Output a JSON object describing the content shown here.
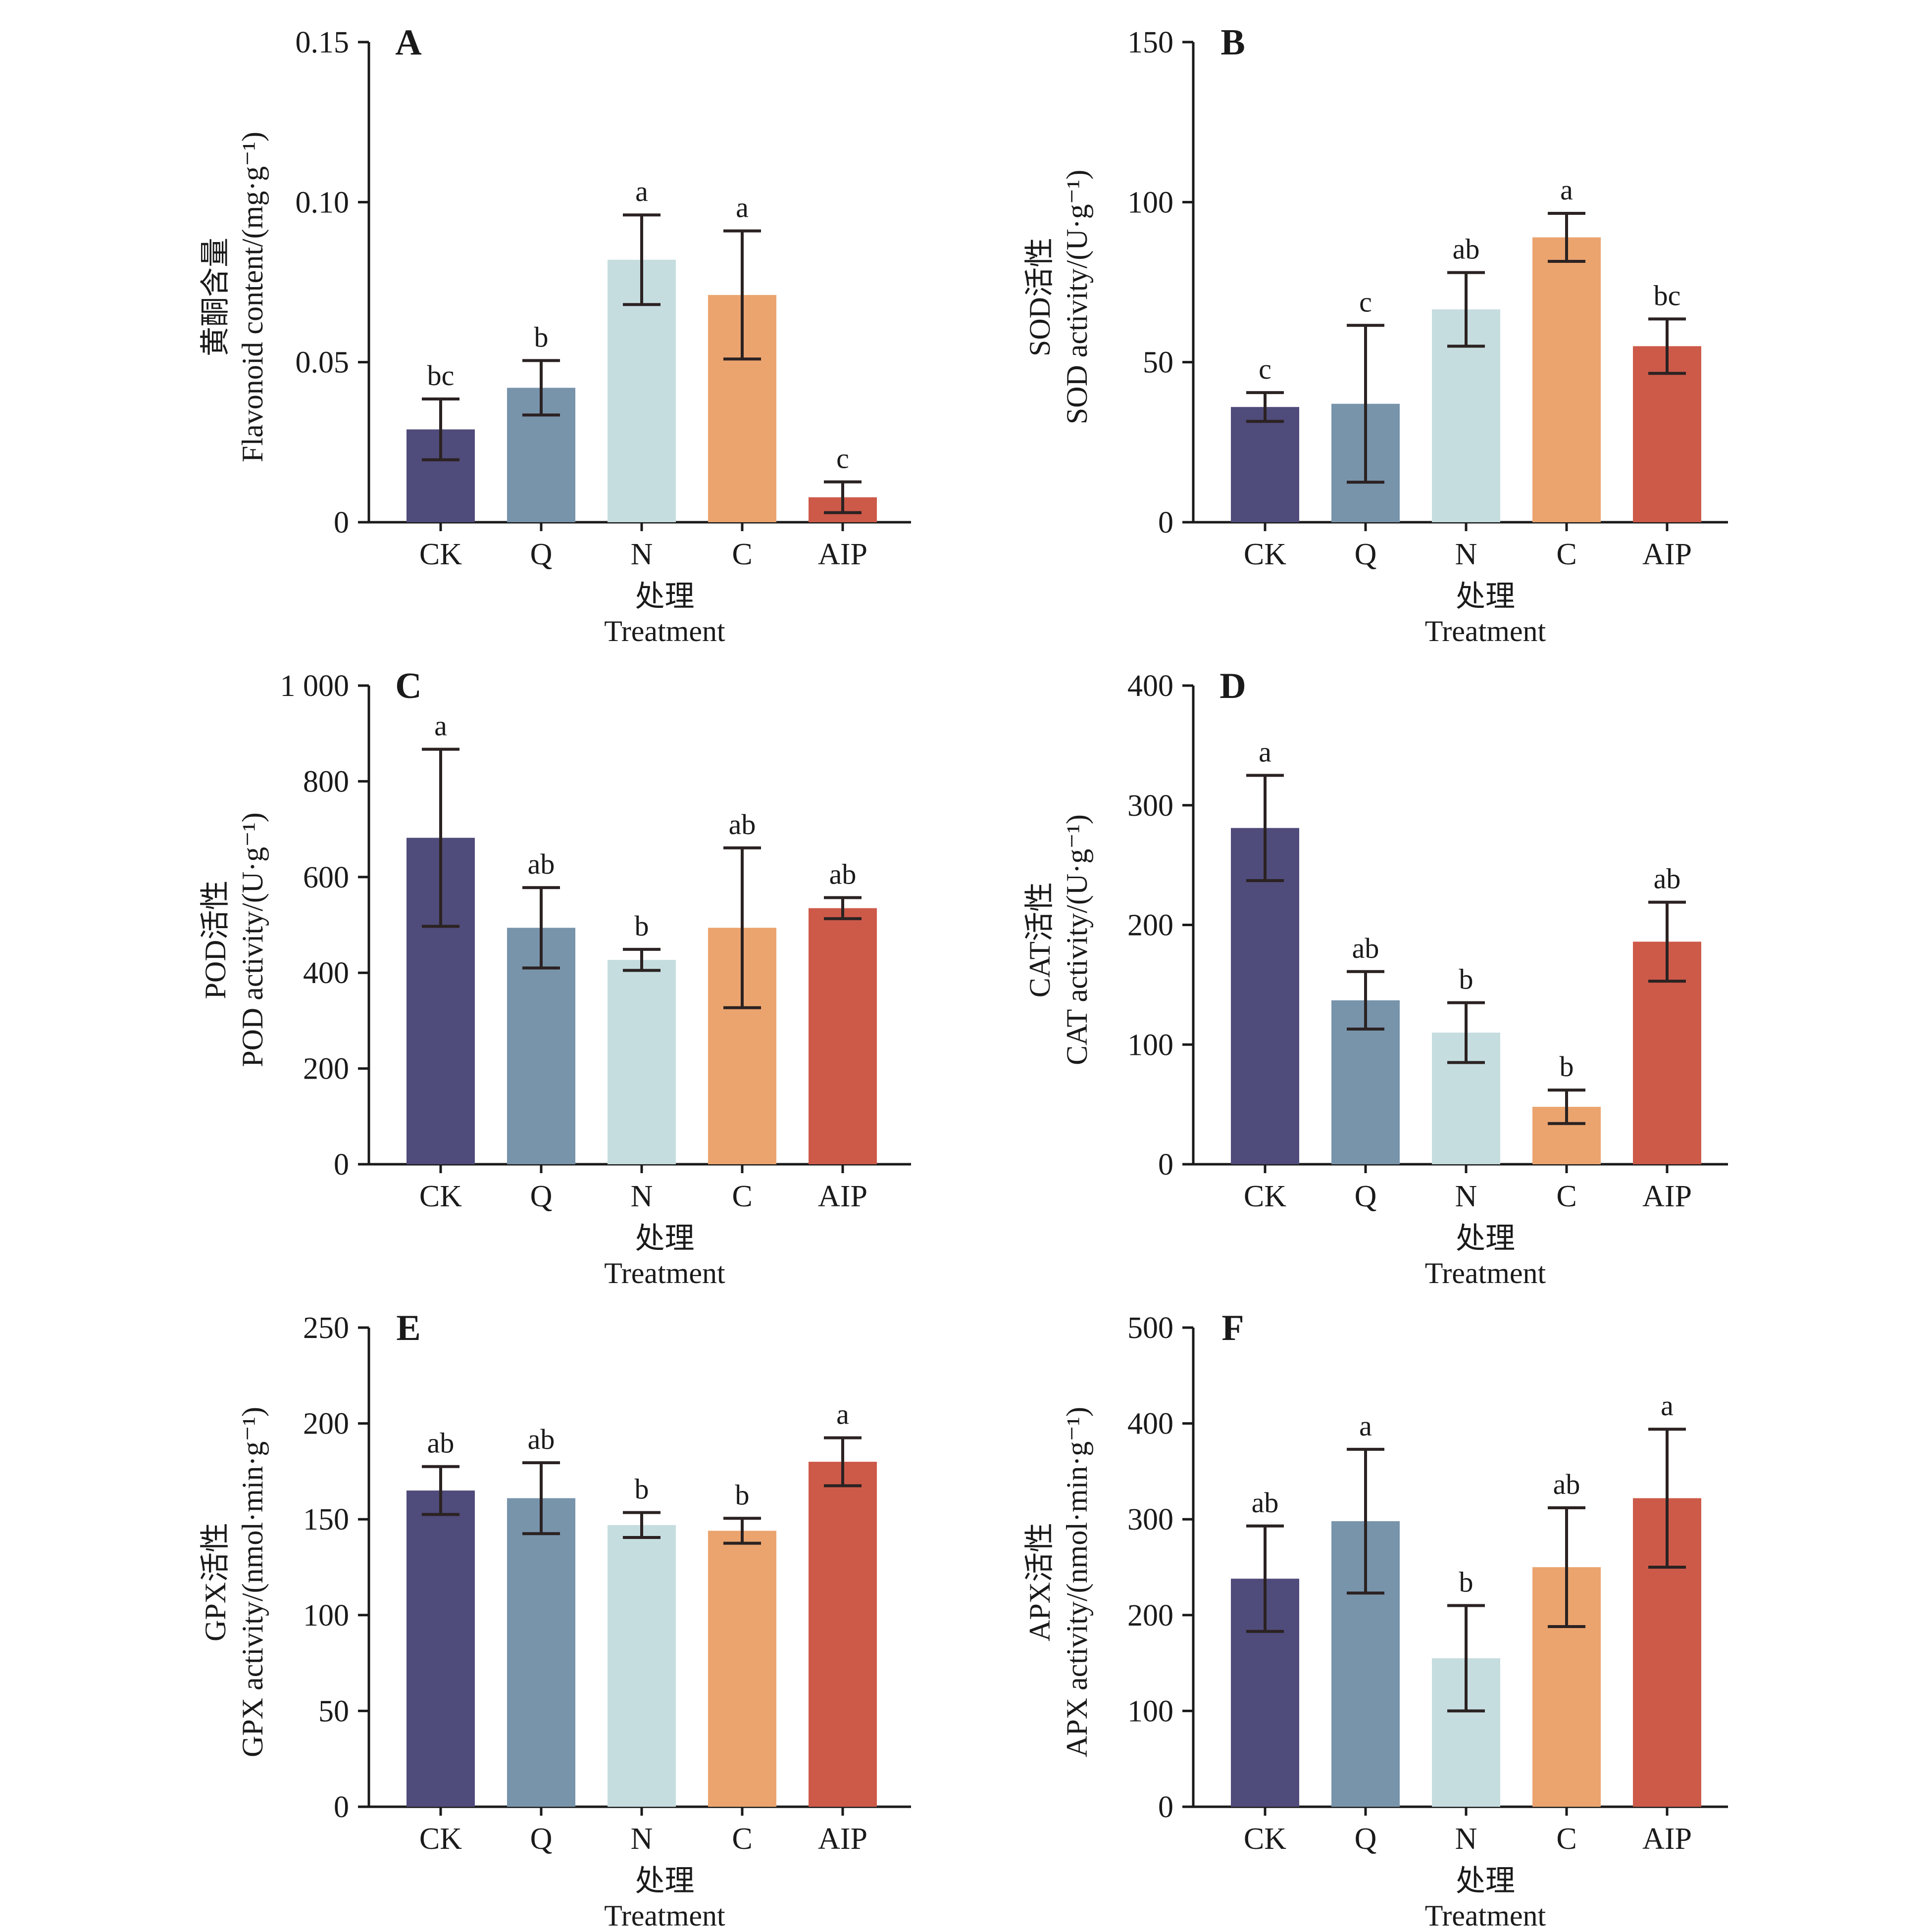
{
  "palette": {
    "CK": "#4f4b7a",
    "Q": "#7894ab",
    "N": "#c6dde0",
    "C": "#eba46e",
    "AIP": "#cd5a49"
  },
  "chart_data": [
    {
      "panel": "A",
      "type": "bar",
      "categories": [
        "CK",
        "Q",
        "N",
        "C",
        "AIP"
      ],
      "values": [
        0.029,
        0.042,
        0.082,
        0.071,
        0.0078
      ],
      "errors": [
        0.0095,
        0.0085,
        0.014,
        0.02,
        0.0048
      ],
      "significance": [
        "bc",
        "b",
        "a",
        "a",
        "c"
      ],
      "ylim": [
        0,
        0.15
      ],
      "yticks": [
        0,
        0.05,
        0.1,
        0.15
      ],
      "ytick_labels": [
        "0",
        "0.05",
        "0.10",
        "0.15"
      ],
      "ylabel_cn": "黄酮含量",
      "ylabel_en": "Flavonoid content/(mg·g⁻¹)",
      "xlabel_cn": "处理",
      "xlabel_en": "Treatment"
    },
    {
      "panel": "B",
      "type": "bar",
      "categories": [
        "CK",
        "Q",
        "N",
        "C",
        "AIP"
      ],
      "values": [
        36,
        37,
        66.5,
        89,
        55
      ],
      "errors": [
        4.5,
        24.5,
        11.5,
        7.5,
        8.5
      ],
      "significance": [
        "c",
        "c",
        "ab",
        "a",
        "bc"
      ],
      "ylim": [
        0,
        150
      ],
      "yticks": [
        0,
        50,
        100,
        150
      ],
      "ytick_labels": [
        "0",
        "50",
        "100",
        "150"
      ],
      "ylabel_cn": "SOD活性",
      "ylabel_en": "SOD activity/(U·g⁻¹)",
      "xlabel_cn": "处理",
      "xlabel_en": "Treatment"
    },
    {
      "panel": "C",
      "type": "bar",
      "categories": [
        "CK",
        "Q",
        "N",
        "C",
        "AIP"
      ],
      "values": [
        682,
        494,
        427,
        494,
        535
      ],
      "errors": [
        185,
        84,
        22,
        167,
        22
      ],
      "significance": [
        "a",
        "ab",
        "b",
        "ab",
        "ab"
      ],
      "ylim": [
        0,
        1000
      ],
      "yticks": [
        0,
        200,
        400,
        600,
        800,
        1000
      ],
      "ytick_labels": [
        "0",
        "200",
        "400",
        "600",
        "800",
        "1 000"
      ],
      "ylabel_cn": "POD活性",
      "ylabel_en": "POD activity/(U·g⁻¹)",
      "xlabel_cn": "处理",
      "xlabel_en": "Treatment"
    },
    {
      "panel": "D",
      "type": "bar",
      "categories": [
        "CK",
        "Q",
        "N",
        "C",
        "AIP"
      ],
      "values": [
        281,
        137,
        110,
        48,
        186
      ],
      "errors": [
        44,
        24,
        25,
        14,
        33
      ],
      "significance": [
        "a",
        "ab",
        "b",
        "b",
        "ab"
      ],
      "ylim": [
        0,
        400
      ],
      "yticks": [
        0,
        100,
        200,
        300,
        400
      ],
      "ytick_labels": [
        "0",
        "100",
        "200",
        "300",
        "400"
      ],
      "ylabel_cn": "CAT活性",
      "ylabel_en": "CAT activity/(U·g⁻¹)",
      "xlabel_cn": "处理",
      "xlabel_en": "Treatment"
    },
    {
      "panel": "E",
      "type": "bar",
      "categories": [
        "CK",
        "Q",
        "N",
        "C",
        "AIP"
      ],
      "values": [
        165,
        161,
        147,
        144,
        180
      ],
      "errors": [
        12.5,
        18.5,
        6.5,
        6.5,
        12.5
      ],
      "significance": [
        "ab",
        "ab",
        "b",
        "b",
        "a"
      ],
      "ylim": [
        0,
        250
      ],
      "yticks": [
        0,
        50,
        100,
        150,
        200,
        250
      ],
      "ytick_labels": [
        "0",
        "50",
        "100",
        "150",
        "200",
        "250"
      ],
      "ylabel_cn": "GPX活性",
      "ylabel_en": "GPX activity/(nmol·min·g⁻¹)",
      "xlabel_cn": "处理",
      "xlabel_en": "Treatment"
    },
    {
      "panel": "F",
      "type": "bar",
      "categories": [
        "CK",
        "Q",
        "N",
        "C",
        "AIP"
      ],
      "values": [
        238,
        298,
        155,
        250,
        322
      ],
      "errors": [
        55,
        75,
        55,
        62,
        72
      ],
      "significance": [
        "ab",
        "a",
        "b",
        "ab",
        "a"
      ],
      "ylim": [
        0,
        500
      ],
      "yticks": [
        0,
        100,
        200,
        300,
        400,
        500
      ],
      "ytick_labels": [
        "0",
        "100",
        "200",
        "300",
        "400",
        "500"
      ],
      "ylabel_cn": "APX活性",
      "ylabel_en": "APX activity/(nmol·min·g⁻¹)",
      "xlabel_cn": "处理",
      "xlabel_en": "Treatment"
    }
  ]
}
